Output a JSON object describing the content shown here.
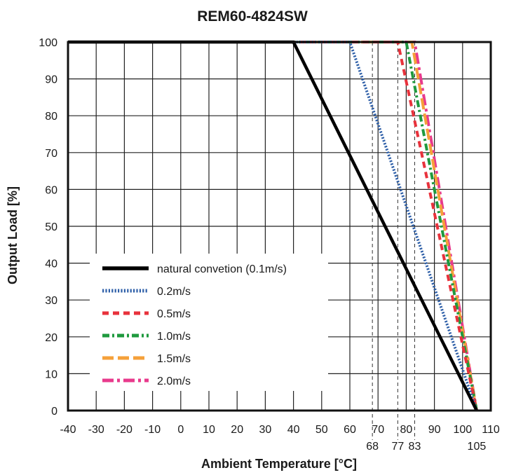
{
  "chart_data": {
    "type": "line",
    "title": "REM60-4824SW",
    "xlabel": "Ambient Temperature [°C]",
    "ylabel": "Output Load [%]",
    "xlim": [
      -40,
      110
    ],
    "ylim": [
      0,
      100
    ],
    "x_ticks": [
      -40,
      -30,
      -20,
      -10,
      0,
      10,
      20,
      30,
      40,
      50,
      60,
      70,
      80,
      90,
      100,
      110
    ],
    "y_ticks": [
      0,
      10,
      20,
      30,
      40,
      50,
      60,
      70,
      80,
      90,
      100
    ],
    "extra_x_ticks": [
      68,
      77,
      83,
      105
    ],
    "grid": true,
    "legend_position": "lower-left",
    "series": [
      {
        "name": "natural convetion (0.1m/s)",
        "color": "#000000",
        "dash": "solid",
        "x": [
          -40,
          40,
          105
        ],
        "y": [
          100,
          100,
          0
        ]
      },
      {
        "name": "0.2m/s",
        "color": "#2e5fa8",
        "dash": "dotted",
        "x": [
          -40,
          60,
          105
        ],
        "y": [
          100,
          100,
          0
        ]
      },
      {
        "name": "0.5m/s",
        "color": "#e8323c",
        "dash": "dashed",
        "x": [
          -40,
          77,
          105
        ],
        "y": [
          100,
          100,
          0
        ]
      },
      {
        "name": "1.0m/s",
        "color": "#1f9a3e",
        "dash": "dashdot",
        "x": [
          -40,
          80,
          105
        ],
        "y": [
          100,
          100,
          0
        ]
      },
      {
        "name": "1.5m/s",
        "color": "#f5a03a",
        "dash": "longdash",
        "x": [
          -40,
          82,
          105
        ],
        "y": [
          100,
          100,
          0
        ]
      },
      {
        "name": "2.0m/s",
        "color": "#e83a8c",
        "dash": "dashdot-long",
        "x": [
          -40,
          83,
          105
        ],
        "y": [
          100,
          100,
          0
        ]
      }
    ]
  }
}
